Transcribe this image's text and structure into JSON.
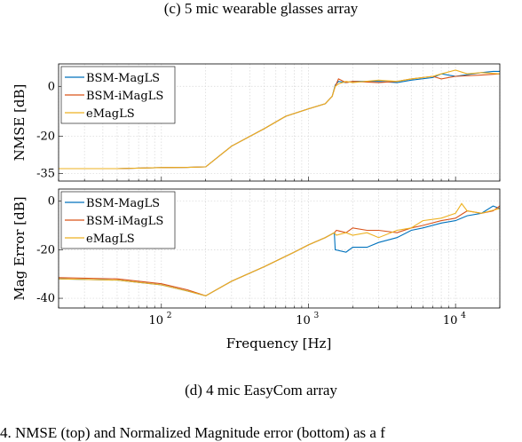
{
  "captions": {
    "top": "(c) 5 mic wearable glasses array",
    "bottom": "(d) 4 mic EasyCom array",
    "figure_text": "4.  NMSE (top) and Normalized Magnitude error (bottom) as a f"
  },
  "colors": {
    "BSM-MagLS": "#0072bd",
    "BSM-iMagLS": "#d95319",
    "eMagLS": "#edb120"
  },
  "chart_data": [
    {
      "type": "line",
      "ylabel": "NMSE [dB]",
      "xlabel": "",
      "xscale": "log",
      "xlim": [
        20,
        20000
      ],
      "ylim": [
        -38,
        9
      ],
      "yticks": [
        0,
        -20,
        -35
      ],
      "grid": true,
      "legend": "top-left",
      "series": [
        {
          "name": "BSM-MagLS",
          "points": [
            [
              20,
              -33
            ],
            [
              50,
              -33
            ],
            [
              100,
              -32.6
            ],
            [
              150,
              -32.5
            ],
            [
              200,
              -32.3
            ],
            [
              300,
              -24
            ],
            [
              500,
              -17
            ],
            [
              700,
              -12
            ],
            [
              1000,
              -9
            ],
            [
              1300,
              -7
            ],
            [
              1450,
              -4
            ],
            [
              1520,
              0.5
            ],
            [
              1600,
              2
            ],
            [
              1800,
              1.5
            ],
            [
              2000,
              2
            ],
            [
              3000,
              2
            ],
            [
              4000,
              1.5
            ],
            [
              5000,
              2.5
            ],
            [
              7000,
              3.5
            ],
            [
              8000,
              5
            ],
            [
              10000,
              4
            ],
            [
              15000,
              5.5
            ],
            [
              18000,
              6
            ],
            [
              20000,
              6
            ]
          ]
        },
        {
          "name": "BSM-iMagLS",
          "points": [
            [
              20,
              -33
            ],
            [
              50,
              -33
            ],
            [
              100,
              -32.6
            ],
            [
              150,
              -32.5
            ],
            [
              200,
              -32.3
            ],
            [
              300,
              -24
            ],
            [
              500,
              -17
            ],
            [
              700,
              -12
            ],
            [
              1000,
              -9
            ],
            [
              1300,
              -7
            ],
            [
              1450,
              -4
            ],
            [
              1520,
              0
            ],
            [
              1600,
              3
            ],
            [
              1800,
              1.5
            ],
            [
              2000,
              2
            ],
            [
              3000,
              1.5
            ],
            [
              4000,
              2
            ],
            [
              5000,
              3
            ],
            [
              7000,
              4
            ],
            [
              8000,
              3
            ],
            [
              10000,
              4
            ],
            [
              15000,
              4.5
            ],
            [
              20000,
              5
            ]
          ]
        },
        {
          "name": "eMagLS",
          "points": [
            [
              20,
              -33
            ],
            [
              50,
              -33
            ],
            [
              100,
              -32.6
            ],
            [
              150,
              -32.5
            ],
            [
              200,
              -32.3
            ],
            [
              300,
              -24
            ],
            [
              500,
              -17
            ],
            [
              700,
              -12
            ],
            [
              1000,
              -9
            ],
            [
              1300,
              -7
            ],
            [
              1450,
              -4
            ],
            [
              1520,
              0
            ],
            [
              1600,
              1
            ],
            [
              1800,
              2
            ],
            [
              2000,
              1.5
            ],
            [
              3000,
              2.5
            ],
            [
              4000,
              2
            ],
            [
              5000,
              3
            ],
            [
              7000,
              4
            ],
            [
              8000,
              5
            ],
            [
              10000,
              6.5
            ],
            [
              12000,
              5
            ],
            [
              15000,
              5.5
            ],
            [
              20000,
              5
            ]
          ]
        }
      ]
    },
    {
      "type": "line",
      "ylabel": "Mag Error [dB]",
      "xlabel": "Frequency [Hz]",
      "xscale": "log",
      "xlim": [
        20,
        20000
      ],
      "ylim": [
        -44,
        5
      ],
      "yticks": [
        0,
        -20,
        -40
      ],
      "xticks": [
        100,
        1000,
        10000
      ],
      "xticklabels": [
        "10",
        "10",
        "10"
      ],
      "xtickexponents": [
        "2",
        "3",
        "4"
      ],
      "grid": true,
      "legend": "top-left",
      "series": [
        {
          "name": "BSM-MagLS",
          "points": [
            [
              20,
              -32
            ],
            [
              50,
              -32.5
            ],
            [
              100,
              -34.5
            ],
            [
              150,
              -37
            ],
            [
              200,
              -39
            ],
            [
              300,
              -33
            ],
            [
              500,
              -27
            ],
            [
              800,
              -21
            ],
            [
              1000,
              -18
            ],
            [
              1300,
              -15
            ],
            [
              1500,
              -13
            ],
            [
              1520,
              -20
            ],
            [
              1800,
              -21
            ],
            [
              2000,
              -19
            ],
            [
              2500,
              -19
            ],
            [
              3000,
              -17
            ],
            [
              4000,
              -15
            ],
            [
              5000,
              -12
            ],
            [
              6000,
              -11
            ],
            [
              8000,
              -9
            ],
            [
              10000,
              -8
            ],
            [
              12000,
              -6
            ],
            [
              15000,
              -5
            ],
            [
              18000,
              -2
            ],
            [
              20000,
              -3
            ]
          ]
        },
        {
          "name": "BSM-iMagLS",
          "points": [
            [
              20,
              -31.5
            ],
            [
              50,
              -32
            ],
            [
              100,
              -34
            ],
            [
              150,
              -36.5
            ],
            [
              200,
              -39
            ],
            [
              300,
              -33
            ],
            [
              500,
              -27
            ],
            [
              800,
              -21
            ],
            [
              1000,
              -18
            ],
            [
              1300,
              -15
            ],
            [
              1500,
              -13
            ],
            [
              1550,
              -12
            ],
            [
              1800,
              -13
            ],
            [
              2000,
              -11
            ],
            [
              2500,
              -12
            ],
            [
              3000,
              -12
            ],
            [
              4000,
              -13
            ],
            [
              5000,
              -11
            ],
            [
              6000,
              -10
            ],
            [
              8000,
              -8
            ],
            [
              10000,
              -7
            ],
            [
              12000,
              -4
            ],
            [
              15000,
              -5
            ],
            [
              18000,
              -4
            ],
            [
              20000,
              -2
            ]
          ]
        },
        {
          "name": "eMagLS",
          "points": [
            [
              20,
              -32
            ],
            [
              50,
              -32.5
            ],
            [
              100,
              -34.5
            ],
            [
              150,
              -37
            ],
            [
              200,
              -39
            ],
            [
              300,
              -33
            ],
            [
              500,
              -27
            ],
            [
              800,
              -21
            ],
            [
              1000,
              -18
            ],
            [
              1300,
              -15
            ],
            [
              1500,
              -13
            ],
            [
              1550,
              -14
            ],
            [
              1800,
              -13
            ],
            [
              2000,
              -14
            ],
            [
              2500,
              -13
            ],
            [
              3000,
              -15
            ],
            [
              4000,
              -12
            ],
            [
              5000,
              -11
            ],
            [
              6000,
              -8
            ],
            [
              8000,
              -7
            ],
            [
              10000,
              -5
            ],
            [
              11000,
              -1
            ],
            [
              12000,
              -4
            ],
            [
              15000,
              -5
            ],
            [
              20000,
              -3
            ]
          ]
        }
      ]
    }
  ]
}
